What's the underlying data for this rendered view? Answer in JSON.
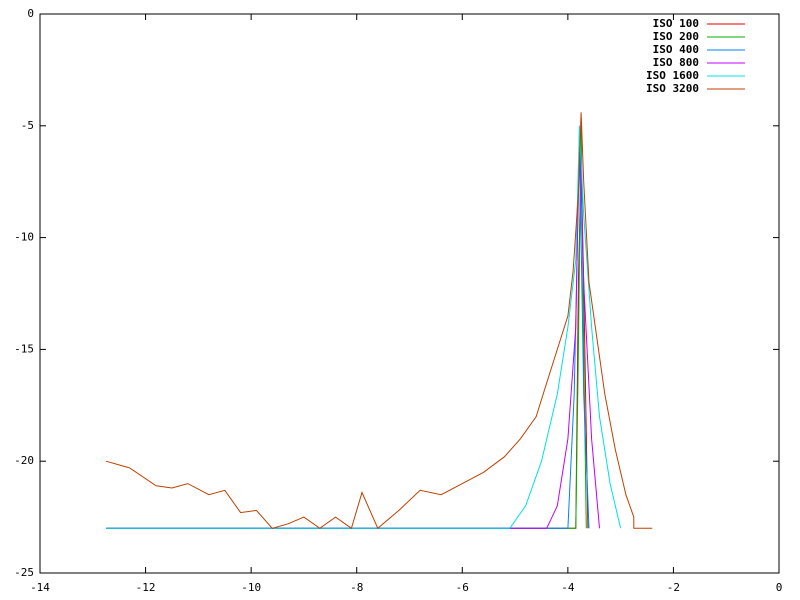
{
  "chart_data": {
    "type": "line",
    "xlim": [
      -14,
      0
    ],
    "ylim": [
      -25,
      0
    ],
    "xticks": [
      -14,
      -12,
      -10,
      -8,
      -6,
      -4,
      -2,
      0
    ],
    "yticks": [
      -25,
      -20,
      -15,
      -10,
      -5,
      0
    ],
    "legend": "top right",
    "grid": false,
    "series": [
      {
        "name": "ISO 100",
        "color": "#e00000",
        "x": [
          -12.75,
          -3.85,
          -3.8,
          -3.75,
          -3.7,
          -3.62
        ],
        "values": [
          -23,
          -23,
          -12,
          -6.8,
          -12,
          -23
        ]
      },
      {
        "name": "ISO 200",
        "color": "#00b000",
        "x": [
          -12.75,
          -3.85,
          -3.8,
          -3.75,
          -3.7,
          -3.65
        ],
        "values": [
          -23,
          -23,
          -15,
          -4.7,
          -15,
          -23
        ]
      },
      {
        "name": "ISO 400",
        "color": "#0080ff",
        "x": [
          -12.75,
          -4.0,
          -3.88,
          -3.78,
          -3.7,
          -3.6
        ],
        "values": [
          -23,
          -23,
          -17,
          -5.8,
          -17,
          -23
        ]
      },
      {
        "name": "ISO 800",
        "color": "#c000ff",
        "x": [
          -12.75,
          -4.4,
          -4.2,
          -4.0,
          -3.85,
          -3.78,
          -3.7,
          -3.55,
          -3.4
        ],
        "values": [
          -23,
          -23,
          -22,
          -19,
          -14,
          -5,
          -12,
          -19,
          -23
        ]
      },
      {
        "name": "ISO 1600",
        "color": "#00e0e0",
        "x": [
          -12.75,
          -5.1,
          -4.8,
          -4.5,
          -4.2,
          -4.0,
          -3.85,
          -3.78,
          -3.7,
          -3.55,
          -3.4,
          -3.2,
          -3.0
        ],
        "values": [
          -23,
          -23,
          -22,
          -20,
          -17,
          -14,
          -11,
          -5,
          -9,
          -14,
          -18,
          -21,
          -23
        ]
      },
      {
        "name": "ISO 3200",
        "color": "#c04000",
        "x": [
          -12.75,
          -12.3,
          -11.8,
          -11.5,
          -11.2,
          -10.8,
          -10.5,
          -10.2,
          -9.9,
          -9.6,
          -9.3,
          -9.0,
          -8.7,
          -8.4,
          -8.1,
          -7.9,
          -7.6,
          -7.2,
          -6.8,
          -6.4,
          -6.0,
          -5.6,
          -5.2,
          -4.9,
          -4.6,
          -4.4,
          -4.2,
          -4.0,
          -3.9,
          -3.8,
          -3.75,
          -3.7,
          -3.6,
          -3.45,
          -3.3,
          -3.1,
          -2.9,
          -2.75,
          -2.75,
          -2.4
        ],
        "values": [
          -20,
          -20.3,
          -21.1,
          -21.2,
          -21,
          -21.5,
          -21.3,
          -22.3,
          -22.2,
          -23,
          -22.8,
          -22.5,
          -23,
          -22.5,
          -23,
          -21.4,
          -23,
          -22.2,
          -21.3,
          -21.5,
          -21,
          -20.5,
          -19.8,
          -19,
          -18,
          -16.5,
          -15,
          -13.5,
          -11.5,
          -8,
          -4.4,
          -7.5,
          -12,
          -14.5,
          -17,
          -19.5,
          -21.5,
          -22.5,
          -23,
          -23
        ]
      }
    ]
  }
}
